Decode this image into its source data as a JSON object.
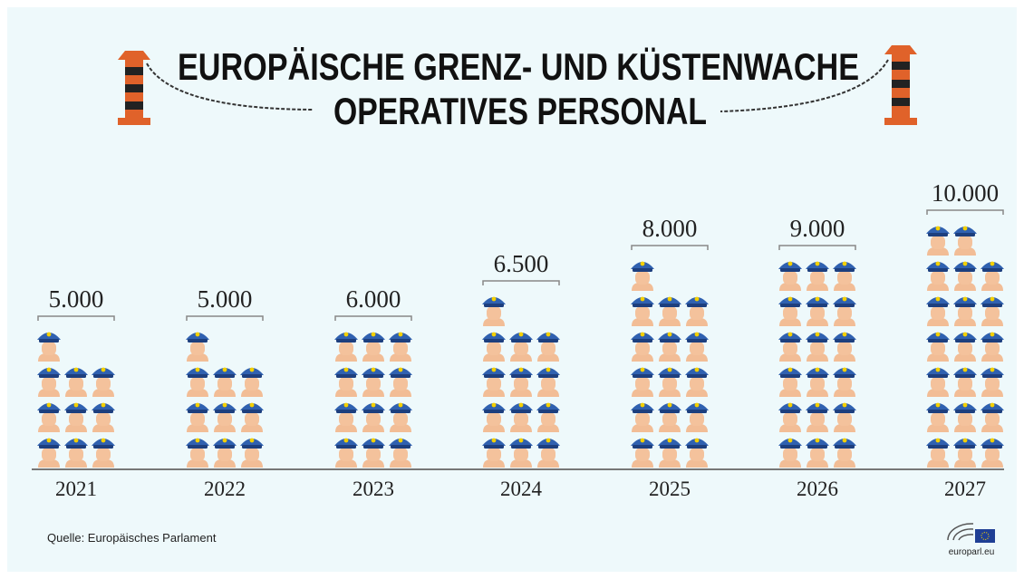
{
  "chart_data": {
    "type": "pictogram",
    "title": "EUROPÄISCHE GRENZ- UND KÜSTENWACHE",
    "subtitle": "OPERATIVES PERSONAL",
    "categories": [
      "2021",
      "2022",
      "2023",
      "2024",
      "2025",
      "2026",
      "2027"
    ],
    "values": [
      5000,
      5000,
      6000,
      6500,
      8000,
      9000,
      10000
    ],
    "value_labels": [
      "5.000",
      "5.000",
      "6.000",
      "6.500",
      "8.000",
      "9.000",
      "10.000"
    ],
    "source": "Quelle: Europäisches Parlament",
    "logo_text": "europarl.eu"
  }
}
